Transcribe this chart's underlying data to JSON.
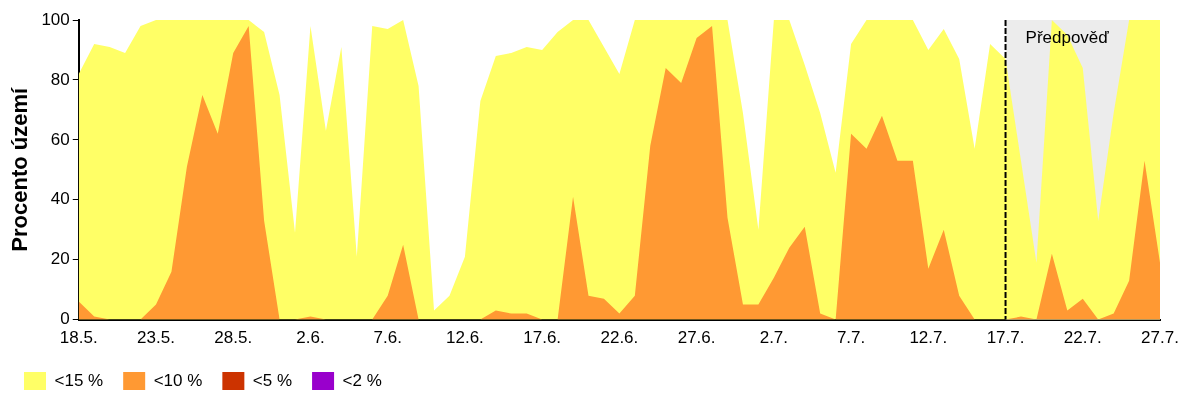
{
  "chart_data": {
    "type": "area",
    "ylabel": "Procento území",
    "categories": [
      "18.5.",
      null,
      null,
      null,
      null,
      "23.5.",
      null,
      null,
      null,
      null,
      "28.5.",
      null,
      null,
      null,
      null,
      "2.6.",
      null,
      null,
      null,
      null,
      "7.6.",
      null,
      null,
      null,
      null,
      "12.6.",
      null,
      null,
      null,
      null,
      "17.6.",
      null,
      null,
      null,
      null,
      "22.6.",
      null,
      null,
      null,
      null,
      "27.6.",
      null,
      null,
      null,
      null,
      "2.7.",
      null,
      null,
      null,
      null,
      "7.7.",
      null,
      null,
      null,
      null,
      "12.7.",
      null,
      null,
      null,
      null,
      "17.7.",
      null,
      null,
      null,
      null,
      "22.7.",
      null,
      null,
      null,
      null,
      "27.7."
    ],
    "series": [
      {
        "name": "<15 %",
        "color": "#ffff66",
        "values": [
          82,
          92,
          91,
          89,
          98,
          100,
          100,
          100,
          100,
          100,
          100,
          100,
          96,
          75,
          29,
          98,
          63,
          91,
          21,
          98,
          97,
          100,
          78,
          3,
          8,
          21,
          73,
          88,
          89,
          91,
          90,
          96,
          100,
          100,
          91,
          82,
          100,
          100,
          100,
          100,
          100,
          100,
          100,
          69,
          30,
          100,
          100,
          85,
          69,
          49,
          92,
          100,
          100,
          100,
          100,
          90,
          97,
          87,
          57,
          92,
          87,
          53,
          19,
          100,
          95,
          84,
          33,
          69,
          100,
          100,
          100
        ]
      },
      {
        "name": "<10 %",
        "color": "#ff9933",
        "values": [
          6,
          1,
          0,
          0,
          0,
          5,
          16,
          51,
          75,
          62,
          89,
          98,
          33,
          0,
          0,
          1,
          0,
          0,
          0,
          0,
          8,
          25,
          0,
          0,
          0,
          0,
          0,
          3,
          2,
          2,
          0,
          0,
          41,
          8,
          7,
          2,
          8,
          58,
          84,
          79,
          94,
          98,
          34,
          5,
          5,
          14,
          24,
          31,
          2,
          0,
          62,
          57,
          68,
          53,
          53,
          17,
          30,
          8,
          0,
          0,
          0,
          1,
          0,
          22,
          3,
          7,
          0,
          2,
          13,
          53,
          19
        ]
      },
      {
        "name": "<5 %",
        "color": "#cc3300",
        "values": [
          null,
          null,
          null,
          null,
          null,
          null,
          null,
          null,
          null,
          null,
          null,
          null,
          null,
          null,
          null,
          null,
          null,
          null,
          null,
          null,
          null,
          null,
          null,
          null,
          null,
          null,
          null,
          null,
          null,
          null,
          null,
          null,
          null,
          null,
          null,
          null,
          null,
          null,
          null,
          null,
          null,
          null,
          null,
          null,
          null,
          null,
          null,
          null,
          null,
          null,
          null,
          null,
          null,
          null,
          null,
          null,
          null,
          null,
          null,
          null,
          null,
          null,
          null,
          null,
          null,
          null,
          null,
          null,
          null,
          null,
          null
        ]
      },
      {
        "name": "<2 %",
        "color": "#9900cc",
        "values": [
          null,
          null,
          null,
          null,
          null,
          null,
          null,
          null,
          null,
          null,
          null,
          null,
          null,
          null,
          null,
          null,
          null,
          null,
          null,
          null,
          null,
          null,
          null,
          null,
          null,
          null,
          null,
          null,
          null,
          null,
          null,
          null,
          null,
          null,
          null,
          null,
          null,
          null,
          null,
          null,
          null,
          null,
          null,
          null,
          null,
          null,
          null,
          null,
          null,
          null,
          null,
          null,
          null,
          null,
          null,
          null,
          null,
          null,
          null,
          null,
          null,
          null,
          null,
          null,
          null,
          null,
          null,
          null,
          null,
          null,
          null
        ]
      }
    ],
    "ylim": [
      0,
      100
    ],
    "yticks": [
      0,
      20,
      40,
      60,
      80,
      100
    ],
    "bands": [
      {
        "axis": "x",
        "from": "17.7.",
        "to": "27.7.",
        "label": "Předpověď",
        "color": "#ececec"
      }
    ],
    "ref_lines": [
      {
        "axis": "x",
        "value": "17.7.",
        "line_style": "dashed",
        "color": "#000000"
      }
    ],
    "legend": "bottom left"
  }
}
